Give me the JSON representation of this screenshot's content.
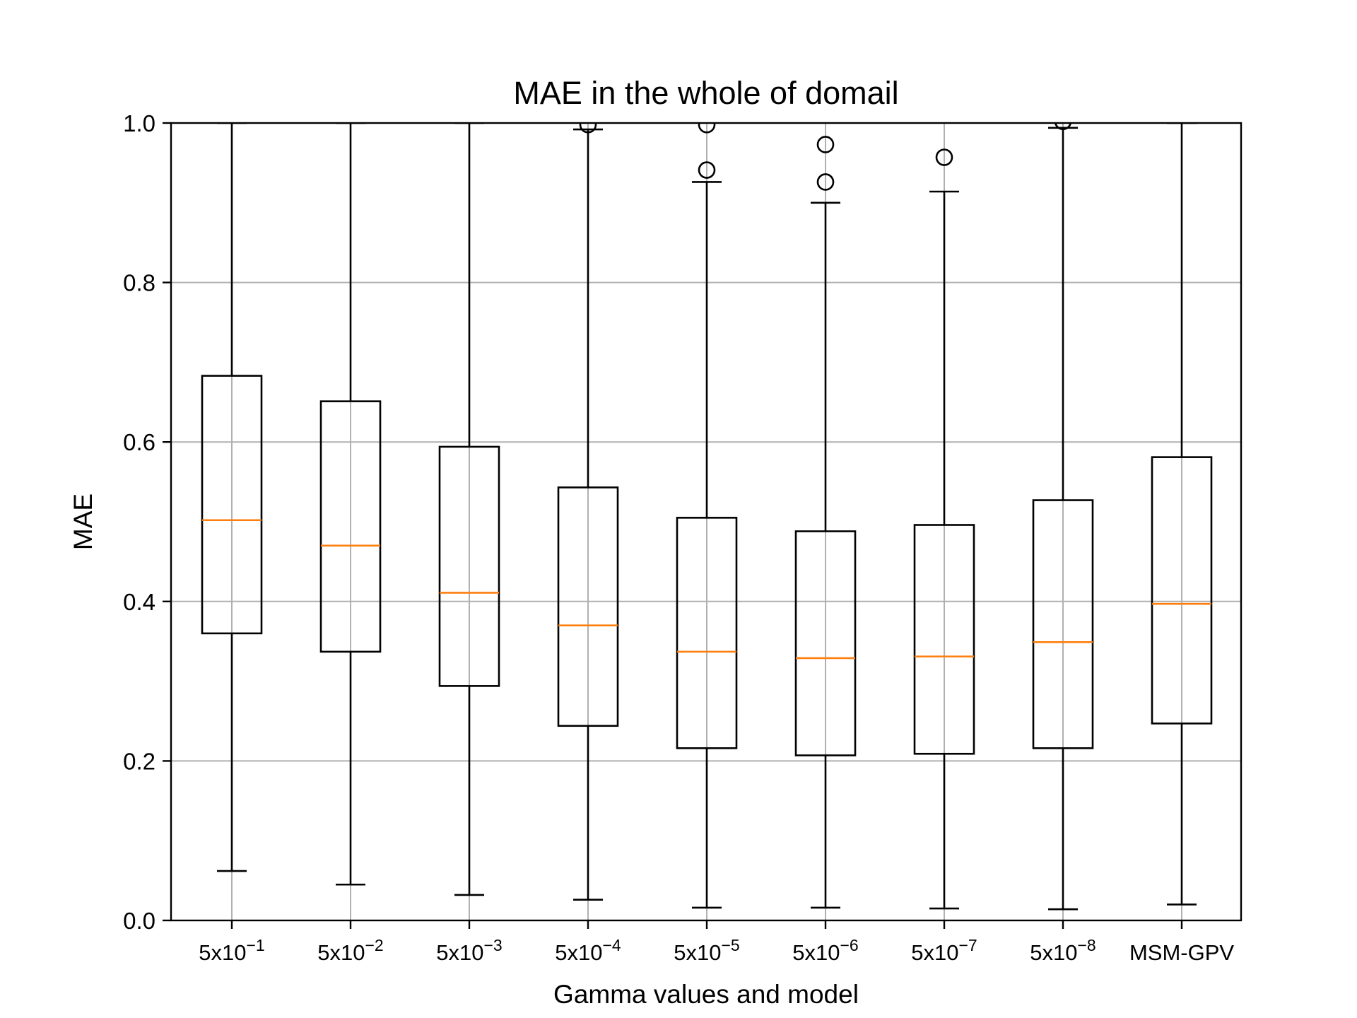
{
  "chart_data": {
    "type": "box",
    "title": "MAE in the whole of domail",
    "xlabel": "Gamma values and model",
    "ylabel": "MAE",
    "ylim": [
      0.0,
      1.0
    ],
    "yticks": [
      "0.0",
      "0.2",
      "0.4",
      "0.6",
      "0.8",
      "1.0"
    ],
    "grid": true,
    "categories": [
      {
        "base": "5x10",
        "exp": "−1"
      },
      {
        "base": "5x10",
        "exp": "−2"
      },
      {
        "base": "5x10",
        "exp": "−3"
      },
      {
        "base": "5x10",
        "exp": "−4"
      },
      {
        "base": "5x10",
        "exp": "−5"
      },
      {
        "base": "5x10",
        "exp": "−6"
      },
      {
        "base": "5x10",
        "exp": "−7"
      },
      {
        "base": "5x10",
        "exp": "−8"
      },
      {
        "base": "MSM-GPV",
        "exp": ""
      }
    ],
    "boxes": [
      {
        "whislo": 0.062,
        "q1": 0.36,
        "med": 0.502,
        "q3": 0.683,
        "whishi": 1.0,
        "fliers": []
      },
      {
        "whislo": 0.045,
        "q1": 0.337,
        "med": 0.47,
        "q3": 0.651,
        "whishi": 1.0,
        "fliers": []
      },
      {
        "whislo": 0.032,
        "q1": 0.294,
        "med": 0.411,
        "q3": 0.594,
        "whishi": 1.0,
        "fliers": []
      },
      {
        "whislo": 0.026,
        "q1": 0.244,
        "med": 0.37,
        "q3": 0.543,
        "whishi": 0.992,
        "fliers": [
          0.998
        ]
      },
      {
        "whislo": 0.016,
        "q1": 0.216,
        "med": 0.337,
        "q3": 0.505,
        "whishi": 0.926,
        "fliers": [
          0.941,
          0.998
        ]
      },
      {
        "whislo": 0.016,
        "q1": 0.207,
        "med": 0.329,
        "q3": 0.488,
        "whishi": 0.9,
        "fliers": [
          0.926,
          0.973
        ]
      },
      {
        "whislo": 0.015,
        "q1": 0.209,
        "med": 0.331,
        "q3": 0.496,
        "whishi": 0.914,
        "fliers": [
          0.957
        ]
      },
      {
        "whislo": 0.014,
        "q1": 0.216,
        "med": 0.349,
        "q3": 0.527,
        "whishi": 0.994,
        "fliers": [
          1.002
        ]
      },
      {
        "whislo": 0.02,
        "q1": 0.247,
        "med": 0.397,
        "q3": 0.581,
        "whishi": 1.0,
        "fliers": []
      }
    ],
    "colors": {
      "box": "#000000",
      "median": "#ff7f0e",
      "grid": "#b0b0b0"
    }
  }
}
